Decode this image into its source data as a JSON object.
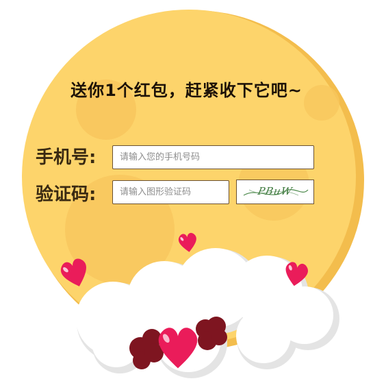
{
  "headline": "送你1个红包，赶紧收下它吧~",
  "form": {
    "phone_label": "手机号:",
    "phone_placeholder": "请输入您的手机号码",
    "code_label": "验证码:",
    "code_placeholder": "请输入图形验证码",
    "captcha_text": "PBuW"
  },
  "colors": {
    "moon": "#fdd46b",
    "moon_shadow": "#f3bd4d",
    "heart": "#ea1c5a",
    "heart_dark": "#7e1520",
    "cloud": "#ffffff",
    "text": "#1c1208"
  }
}
